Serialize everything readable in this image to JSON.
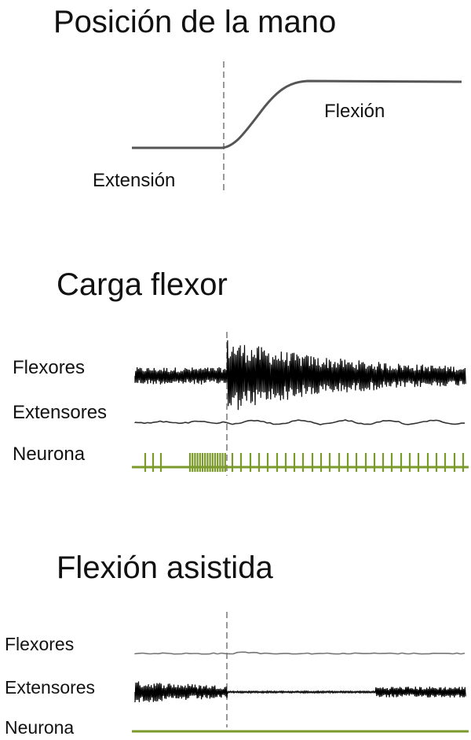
{
  "section1": {
    "title": "Posición de la mano",
    "labels": {
      "extension": "Extensión",
      "flexion": "Flexión"
    }
  },
  "section2": {
    "title": "Carga flexor",
    "rows": {
      "flexores": "Flexores",
      "extensores": "Extensores",
      "neurona": "Neurona"
    }
  },
  "section3": {
    "title": "Flexión asistida",
    "rows": {
      "flexores": "Flexores",
      "extensores": "Extensores",
      "neurona": "Neurona"
    }
  },
  "colors": {
    "trace": "#000000",
    "neuron": "#7a9a2a",
    "dashed": "#999999"
  }
}
